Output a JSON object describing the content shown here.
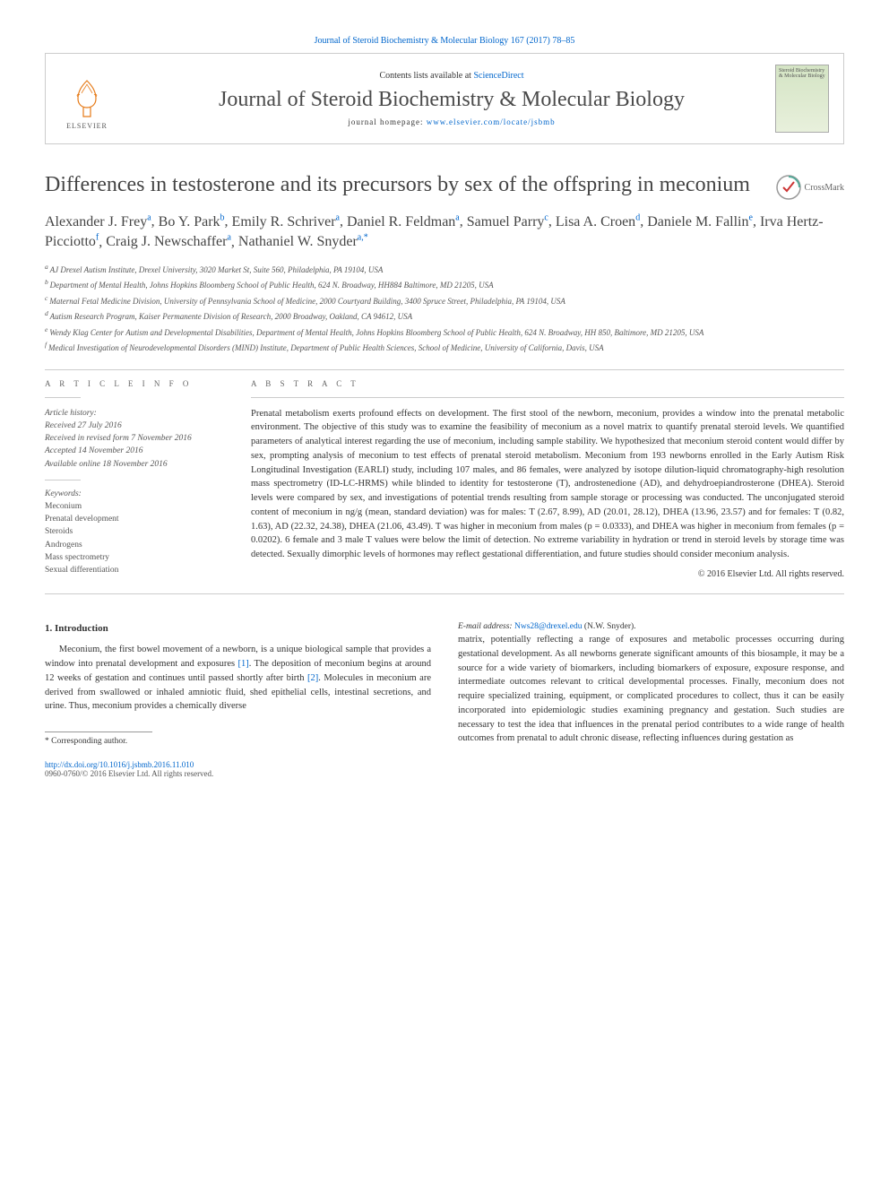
{
  "top_link": {
    "journal_full": "Journal of Steroid Biochemistry & Molecular Biology 167 (2017) 78–85"
  },
  "header": {
    "contents_prefix": "Contents lists available at ",
    "contents_link": "ScienceDirect",
    "journal_name": "Journal of Steroid Biochemistry & Molecular Biology",
    "homepage_prefix": "journal homepage: ",
    "homepage_url": "www.elsevier.com/locate/jsbmb",
    "publisher": "ELSEVIER",
    "cover_text": "Steroid Biochemistry & Molecular Biology"
  },
  "crossmark_label": "CrossMark",
  "title": "Differences in testosterone and its precursors by sex of the offspring in meconium",
  "authors_html_parts": [
    {
      "name": "Alexander J. Frey",
      "sup": "a"
    },
    {
      "name": "Bo Y. Park",
      "sup": "b"
    },
    {
      "name": "Emily R. Schriver",
      "sup": "a"
    },
    {
      "name": "Daniel R. Feldman",
      "sup": "a"
    },
    {
      "name": "Samuel Parry",
      "sup": "c"
    },
    {
      "name": "Lisa A. Croen",
      "sup": "d"
    },
    {
      "name": "Daniele M. Fallin",
      "sup": "e"
    },
    {
      "name": "Irva Hertz-Picciotto",
      "sup": "f"
    },
    {
      "name": "Craig J. Newschaffer",
      "sup": "a"
    },
    {
      "name": "Nathaniel W. Snyder",
      "sup": "a,*"
    }
  ],
  "affiliations": [
    {
      "key": "a",
      "text": "AJ Drexel Autism Institute, Drexel University, 3020 Market St, Suite 560, Philadelphia, PA 19104, USA"
    },
    {
      "key": "b",
      "text": "Department of Mental Health, Johns Hopkins Bloomberg School of Public Health, 624 N. Broadway, HH884 Baltimore, MD 21205, USA"
    },
    {
      "key": "c",
      "text": "Maternal Fetal Medicine Division, University of Pennsylvania School of Medicine, 2000 Courtyard Building, 3400 Spruce Street, Philadelphia, PA 19104, USA"
    },
    {
      "key": "d",
      "text": "Autism Research Program, Kaiser Permanente Division of Research, 2000 Broadway, Oakland, CA 94612, USA"
    },
    {
      "key": "e",
      "text": "Wendy Klag Center for Autism and Developmental Disabilities, Department of Mental Health, Johns Hopkins Bloomberg School of Public Health, 624 N. Broadway, HH 850, Baltimore, MD 21205, USA"
    },
    {
      "key": "f",
      "text": "Medical Investigation of Neurodevelopmental Disorders (MIND) Institute, Department of Public Health Sciences, School of Medicine, University of California, Davis, USA"
    }
  ],
  "article_info_label": "A R T I C L E   I N F O",
  "abstract_label": "A B S T R A C T",
  "history": {
    "label": "Article history:",
    "received": "Received 27 July 2016",
    "revised": "Received in revised form 7 November 2016",
    "accepted": "Accepted 14 November 2016",
    "online": "Available online 18 November 2016"
  },
  "keywords_label": "Keywords:",
  "keywords": [
    "Meconium",
    "Prenatal development",
    "Steroids",
    "Androgens",
    "Mass spectrometry",
    "Sexual differentiation"
  ],
  "abstract": "Prenatal metabolism exerts profound effects on development. The first stool of the newborn, meconium, provides a window into the prenatal metabolic environment. The objective of this study was to examine the feasibility of meconium as a novel matrix to quantify prenatal steroid levels. We quantified parameters of analytical interest regarding the use of meconium, including sample stability. We hypothesized that meconium steroid content would differ by sex, prompting analysis of meconium to test effects of prenatal steroid metabolism. Meconium from 193 newborns enrolled in the Early Autism Risk Longitudinal Investigation (EARLI) study, including 107 males, and 86 females, were analyzed by isotope dilution-liquid chromatography-high resolution mass spectrometry (ID-LC-HRMS) while blinded to identity for testosterone (T), androstenedione (AD), and dehydroepiandrosterone (DHEA). Steroid levels were compared by sex, and investigations of potential trends resulting from sample storage or processing was conducted. The unconjugated steroid content of meconium in ng/g (mean, standard deviation) was for males: T (2.67, 8.99), AD (20.01, 28.12), DHEA (13.96, 23.57) and for females: T (0.82, 1.63), AD (22.32, 24.38), DHEA (21.06, 43.49). T was higher in meconium from males (p = 0.0333), and DHEA was higher in meconium from females (p = 0.0202). 6 female and 3 male T values were below the limit of detection. No extreme variability in hydration or trend in steroid levels by storage time was detected. Sexually dimorphic levels of hormones may reflect gestational differentiation, and future studies should consider meconium analysis.",
  "abstract_copyright": "© 2016 Elsevier Ltd. All rights reserved.",
  "intro_heading": "1. Introduction",
  "intro_para1_a": "Meconium, the first bowel movement of a newborn, is a unique biological sample that provides a window into prenatal development and exposures ",
  "intro_ref1": "[1]",
  "intro_para1_b": ". The deposition of meconium begins at around 12 weeks of gestation and continues until passed shortly after birth ",
  "intro_ref2": "[2]",
  "intro_para1_c": ". Molecules in meconium are derived from swallowed or inhaled amniotic fluid, shed epithelial cells, intestinal secretions, and urine. Thus, meconium provides a chemically diverse",
  "intro_para2": "matrix, potentially reflecting a range of exposures and metabolic processes occurring during gestational development. As all newborns generate significant amounts of this biosample, it may be a source for a wide variety of biomarkers, including biomarkers of exposure, exposure response, and intermediate outcomes relevant to critical developmental processes. Finally, meconium does not require specialized training, equipment, or complicated procedures to collect, thus it can be easily incorporated into epidemiologic studies examining pregnancy and gestation. Such studies are necessary to test the idea that influences in the prenatal period contributes to a wide range of health outcomes from prenatal to adult chronic disease, reflecting influences during gestation as",
  "corresponding_label": "* Corresponding author.",
  "email_label": "E-mail address: ",
  "email": "Nws28@drexel.edu",
  "email_name": " (N.W. Snyder).",
  "doi": "http://dx.doi.org/10.1016/j.jsbmb.2016.11.010",
  "issn_copyright": "0960-0760/© 2016 Elsevier Ltd. All rights reserved.",
  "colors": {
    "link": "#0066cc",
    "text": "#333333",
    "muted": "#555555",
    "border": "#cccccc"
  }
}
